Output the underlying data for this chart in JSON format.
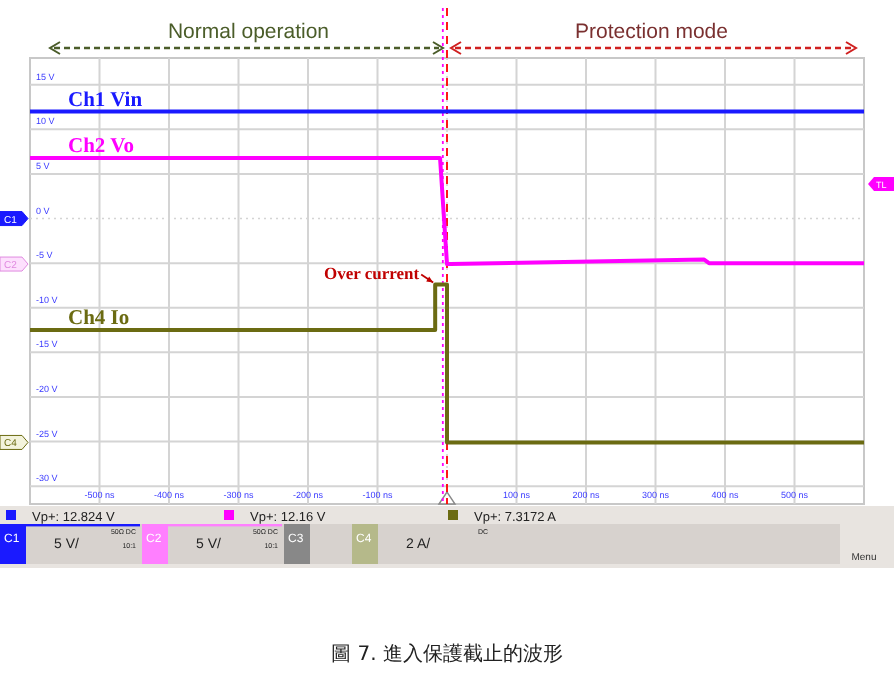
{
  "chart_data": {
    "type": "line",
    "grid": true,
    "xlim": [
      -600,
      600
    ],
    "ylim": [
      -32,
      18
    ],
    "xticks": [
      {
        "value": -500,
        "label": "-500 ns"
      },
      {
        "value": -400,
        "label": "-400 ns"
      },
      {
        "value": -300,
        "label": "-300 ns"
      },
      {
        "value": -200,
        "label": "-200 ns"
      },
      {
        "value": -100,
        "label": "-100 ns"
      },
      {
        "value": 0,
        "label": null
      },
      {
        "value": 100,
        "label": "100 ns"
      },
      {
        "value": 200,
        "label": "200 ns"
      },
      {
        "value": 300,
        "label": "300 ns"
      },
      {
        "value": 400,
        "label": "400 ns"
      },
      {
        "value": 500,
        "label": "500 ns"
      }
    ],
    "yticks": [
      {
        "value": 15,
        "label": "15 V"
      },
      {
        "value": 10,
        "label": "10 V"
      },
      {
        "value": 5,
        "label": "5 V"
      },
      {
        "value": 0,
        "label": "0 V"
      },
      {
        "value": -5,
        "label": "-5 V"
      },
      {
        "value": -10,
        "label": "-10 V"
      },
      {
        "value": -15,
        "label": "-15 V"
      },
      {
        "value": -20,
        "label": "-20 V"
      },
      {
        "value": -25,
        "label": "-25 V"
      },
      {
        "value": -30,
        "label": "-30 V"
      }
    ],
    "series": [
      {
        "name": "Ch1 Vin",
        "color": "#1a1aff",
        "x": [
          -600,
          600
        ],
        "values": [
          12,
          12
        ]
      },
      {
        "name": "Ch2 Vo",
        "color": "#ff00ff",
        "x": [
          -600,
          -10,
          0,
          5,
          370,
          377,
          600
        ],
        "values": [
          6.8,
          6.8,
          -5.1,
          -5.1,
          -4.6,
          -5.0,
          -5.0
        ]
      },
      {
        "name": "Ch4 Io",
        "color": "#6b6b12",
        "x": [
          -600,
          -17,
          -17,
          0,
          0,
          600
        ],
        "values": [
          -12.5,
          -12.5,
          -7.4,
          -7.4,
          -25.1,
          -25.1
        ]
      }
    ],
    "ref_lines": [
      {
        "axis": "x",
        "value": 0,
        "color": "#ff0000",
        "line_style": "dashed"
      },
      {
        "axis": "x",
        "value": -6,
        "color": "#ff00ff",
        "line_style": "dotted"
      }
    ],
    "annotations": [
      "Normal operation",
      "Protection mode",
      {
        "text": "Over current",
        "x": -17,
        "y": -7.4
      },
      "Vp+: 12.824 V",
      "Vp+: 12.16 V",
      "Vp+: 7.3172 A",
      "C1",
      "C2",
      "C4",
      "TL",
      "C1",
      "5 V/",
      "50Ω DC",
      "10:1",
      "C2",
      "5 V/",
      "50Ω DC",
      "10:1",
      "C3",
      "C4",
      "2 A/",
      "DC",
      "Menu",
      "圖 7.  進入保護截止的波形"
    ]
  }
}
